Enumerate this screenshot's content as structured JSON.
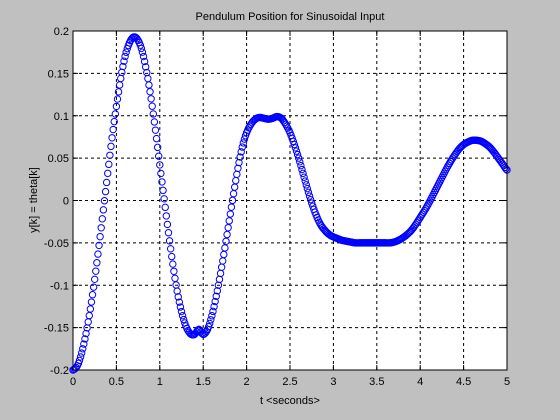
{
  "chart_data": {
    "type": "scatter",
    "title": "Pendulum Position for Sinusoidal Input",
    "xlabel": "t <seconds>",
    "ylabel": "y[k] = theta[k]",
    "xlim": [
      0,
      5
    ],
    "ylim": [
      -0.2,
      0.2
    ],
    "xticks": [
      0,
      0.5,
      1,
      1.5,
      2,
      2.5,
      3,
      3.5,
      4,
      4.5,
      5
    ],
    "xtick_labels": [
      "0",
      "0.5",
      "1",
      "1.5",
      "2",
      "2.5",
      "3",
      "3.5",
      "4",
      "4.5",
      "5"
    ],
    "yticks": [
      -0.2,
      -0.15,
      -0.1,
      -0.05,
      0,
      0.05,
      0.1,
      0.15,
      0.2
    ],
    "ytick_labels": [
      "-0.2",
      "-0.15",
      "-0.1",
      "-0.05",
      "0",
      "0.05",
      "0.1",
      "0.15",
      "0.2"
    ],
    "grid": true,
    "marker": "circle",
    "series": [
      {
        "color": "#0000ff",
        "x": [
          0,
          0.05,
          0.1,
          0.15,
          0.2,
          0.25,
          0.3,
          0.35,
          0.4,
          0.45,
          0.5,
          0.55,
          0.6,
          0.65,
          0.7,
          0.75,
          0.8,
          0.85,
          0.9,
          0.95,
          1.0,
          1.05,
          1.1,
          1.15,
          1.2,
          1.25,
          1.3,
          1.35,
          1.4,
          1.45,
          1.5,
          1.55,
          1.6,
          1.65,
          1.7,
          1.75,
          1.8,
          1.85,
          1.9,
          1.95,
          2.0,
          2.05,
          2.1,
          2.15,
          2.2,
          2.25,
          2.3,
          2.35,
          2.4,
          2.45,
          2.5,
          2.55,
          2.6,
          2.65,
          2.7,
          2.75,
          2.8,
          2.85,
          2.9,
          2.95,
          3.0,
          3.05,
          3.1,
          3.15,
          3.2,
          3.25,
          3.3,
          3.35,
          3.4,
          3.45,
          3.5,
          3.55,
          3.6,
          3.65,
          3.7,
          3.75,
          3.8,
          3.85,
          3.9,
          3.95,
          4.0,
          4.05,
          4.1,
          4.15,
          4.2,
          4.25,
          4.3,
          4.35,
          4.4,
          4.45,
          4.5,
          4.55,
          4.6,
          4.65,
          4.7,
          4.75,
          4.8,
          4.85,
          4.9,
          4.95,
          5.0
        ],
        "y": [
          -0.2,
          -0.195,
          -0.18,
          -0.157,
          -0.128,
          -0.093,
          -0.053,
          -0.011,
          0.032,
          0.074,
          0.111,
          0.144,
          0.17,
          0.186,
          0.193,
          0.189,
          0.175,
          0.151,
          0.12,
          0.083,
          0.042,
          0.002,
          -0.038,
          -0.075,
          -0.107,
          -0.131,
          -0.148,
          -0.157,
          -0.158,
          -0.152,
          -0.158,
          -0.152,
          -0.136,
          -0.113,
          -0.086,
          -0.056,
          -0.024,
          0.008,
          0.038,
          0.063,
          0.08,
          0.09,
          0.096,
          0.098,
          0.097,
          0.096,
          0.097,
          0.099,
          0.097,
          0.09,
          0.08,
          0.066,
          0.05,
          0.032,
          0.014,
          -0.003,
          -0.017,
          -0.028,
          -0.035,
          -0.04,
          -0.043,
          -0.045,
          -0.047,
          -0.048,
          -0.049,
          -0.05,
          -0.05,
          -0.05,
          -0.05,
          -0.05,
          -0.05,
          -0.05,
          -0.05,
          -0.05,
          -0.049,
          -0.047,
          -0.044,
          -0.04,
          -0.035,
          -0.028,
          -0.02,
          -0.012,
          -0.003,
          0.007,
          0.017,
          0.027,
          0.037,
          0.046,
          0.054,
          0.061,
          0.066,
          0.069,
          0.071,
          0.071,
          0.07,
          0.067,
          0.063,
          0.057,
          0.05,
          0.043,
          0.036
        ]
      }
    ]
  }
}
